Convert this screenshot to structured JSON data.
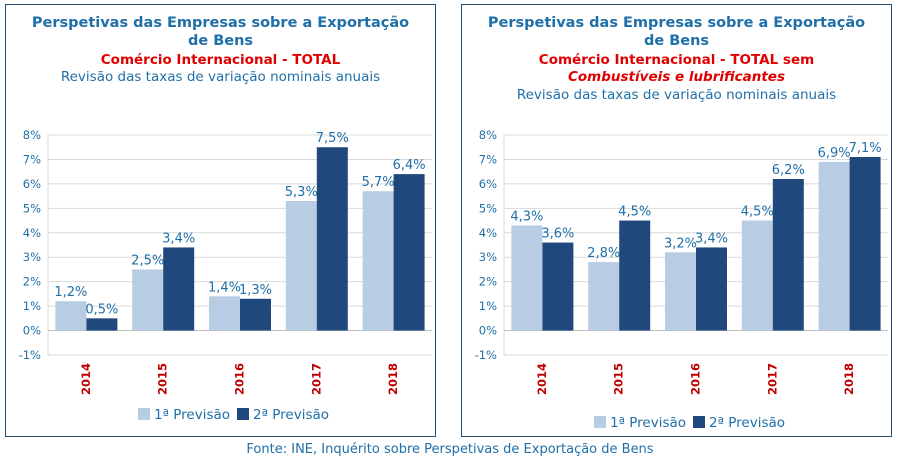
{
  "source": "Fonte: INE, Inquérito sobre Perspetivas de Exportação de Bens",
  "colors": {
    "series1": "#b8cce4",
    "series2": "#1f497d",
    "title": "#1f6fa8",
    "subtitle": "#e00000",
    "category": "#c00000",
    "grid": "#d9d9d9",
    "label": "#1f6fa8",
    "axis": "#17375e"
  },
  "chart_data": [
    {
      "type": "bar",
      "title_line1": "Perspetivas das Empresas sobre a Exportação",
      "title_line2": "de Bens",
      "subtitle_line1": "Comércio Internacional  - TOTAL",
      "subtitle_line2": "",
      "description": "Revisão das taxas de variação nominais anuais",
      "categories": [
        "2014",
        "2015",
        "2016",
        "2017",
        "2018"
      ],
      "ylim": [
        -1,
        8
      ],
      "yticks": [
        "-1%",
        "0%",
        "1%",
        "2%",
        "3%",
        "4%",
        "5%",
        "6%",
        "7%",
        "8%"
      ],
      "series": [
        {
          "name": "1ª Previsão",
          "values": [
            1.2,
            2.5,
            1.4,
            5.3,
            5.7
          ],
          "labels": [
            "1,2%",
            "2,5%",
            "1,4%",
            "5,3%",
            "5,7%"
          ]
        },
        {
          "name": "2ª Previsão",
          "values": [
            0.5,
            3.4,
            1.3,
            7.5,
            6.4
          ],
          "labels": [
            "0,5%",
            "3,4%",
            "1,3%",
            "7,5%",
            "6,4%"
          ]
        }
      ]
    },
    {
      "type": "bar",
      "title_line1": "Perspetivas das Empresas sobre a Exportação",
      "title_line2": "de Bens",
      "subtitle_line1": "Comércio Internacional  - TOTAL sem",
      "subtitle_line2": "Combustíveis e lubrificantes",
      "description": "Revisão das taxas de variação nominais anuais",
      "categories": [
        "2014",
        "2015",
        "2016",
        "2017",
        "2018"
      ],
      "ylim": [
        -1,
        8
      ],
      "yticks": [
        "-1%",
        "0%",
        "1%",
        "2%",
        "3%",
        "4%",
        "5%",
        "6%",
        "7%",
        "8%"
      ],
      "series": [
        {
          "name": "1ª Previsão",
          "values": [
            4.3,
            2.8,
            3.2,
            4.5,
            6.9
          ],
          "labels": [
            "4,3%",
            "2,8%",
            "3,2%",
            "4,5%",
            "6,9%"
          ]
        },
        {
          "name": "2ª Previsão",
          "values": [
            3.6,
            4.5,
            3.4,
            6.2,
            7.1
          ],
          "labels": [
            "3,6%",
            "4,5%",
            "3,4%",
            "6,2%",
            "7,1%"
          ]
        }
      ]
    }
  ]
}
